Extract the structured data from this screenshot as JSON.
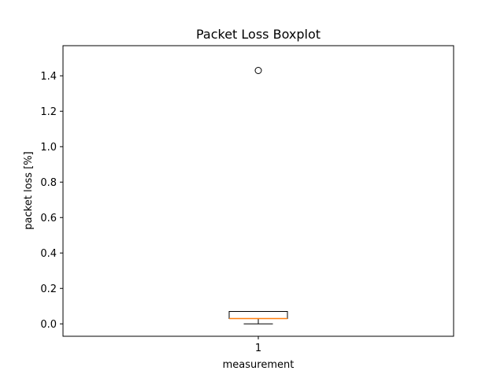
{
  "chart_data": {
    "type": "boxplot",
    "title": "Packet Loss Boxplot",
    "xlabel": "measurement",
    "ylabel": "packet loss [%]",
    "categories": [
      "1"
    ],
    "ylim": [
      -0.07,
      1.57
    ],
    "yticks": [
      0.0,
      0.2,
      0.4,
      0.6,
      0.8,
      1.0,
      1.2,
      1.4
    ],
    "ytick_labels": [
      "0.0",
      "0.2",
      "0.4",
      "0.6",
      "0.8",
      "1.0",
      "1.2",
      "1.4"
    ],
    "grid": false,
    "colors": {
      "box": "#000000",
      "median": "#ff7f0e",
      "outlier": "#000000"
    },
    "boxes": [
      {
        "category": "1",
        "whisker_low": 0.0,
        "q1": 0.03,
        "median": 0.03,
        "q3": 0.07,
        "whisker_high": 0.07,
        "outliers": [
          1.43
        ]
      }
    ]
  }
}
